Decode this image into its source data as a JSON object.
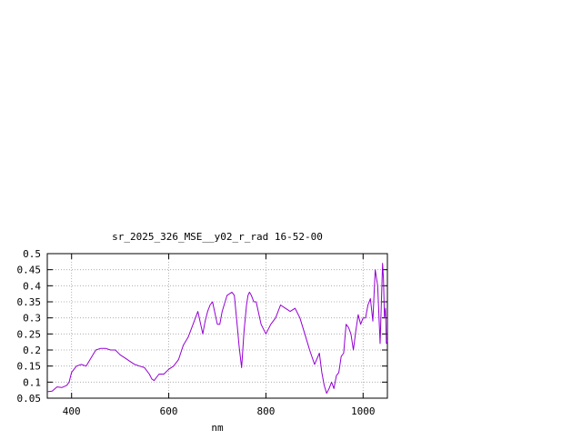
{
  "chart_data": {
    "type": "line",
    "title": "sr_2025_326_MSE__y02_r_rad 16-52-00",
    "xlabel": "nm",
    "ylabel": "",
    "xlim": [
      350,
      1050
    ],
    "ylim": [
      0.05,
      0.5
    ],
    "xticks": [
      400,
      600,
      800,
      1000
    ],
    "yticks": [
      0.05,
      0.1,
      0.15,
      0.2,
      0.25,
      0.3,
      0.35,
      0.4,
      0.45,
      0.5
    ],
    "grid": true,
    "legend": "none",
    "series": [
      {
        "color": "#9400d3",
        "x": [
          350,
          360,
          370,
          380,
          390,
          395,
          400,
          405,
          410,
          420,
          430,
          440,
          450,
          460,
          470,
          480,
          490,
          500,
          510,
          520,
          530,
          540,
          550,
          560,
          565,
          570,
          575,
          580,
          590,
          600,
          610,
          620,
          630,
          640,
          650,
          660,
          670,
          675,
          680,
          685,
          690,
          700,
          705,
          710,
          720,
          730,
          735,
          740,
          745,
          750,
          755,
          760,
          763,
          766,
          770,
          775,
          780,
          790,
          800,
          810,
          820,
          830,
          840,
          845,
          850,
          860,
          870,
          880,
          890,
          900,
          910,
          915,
          920,
          925,
          930,
          935,
          940,
          945,
          950,
          955,
          960,
          965,
          970,
          975,
          980,
          985,
          990,
          995,
          1000,
          1005,
          1010,
          1015,
          1020,
          1025,
          1030,
          1035,
          1040,
          1042,
          1044,
          1046,
          1048,
          1050
        ],
        "y": [
          0.07,
          0.072,
          0.085,
          0.083,
          0.09,
          0.1,
          0.13,
          0.14,
          0.15,
          0.155,
          0.15,
          0.175,
          0.2,
          0.205,
          0.205,
          0.2,
          0.2,
          0.185,
          0.175,
          0.165,
          0.155,
          0.15,
          0.145,
          0.125,
          0.11,
          0.105,
          0.115,
          0.125,
          0.125,
          0.14,
          0.15,
          0.17,
          0.215,
          0.24,
          0.28,
          0.32,
          0.25,
          0.29,
          0.32,
          0.34,
          0.35,
          0.28,
          0.28,
          0.32,
          0.37,
          0.38,
          0.37,
          0.29,
          0.21,
          0.145,
          0.26,
          0.34,
          0.37,
          0.38,
          0.37,
          0.35,
          0.35,
          0.28,
          0.25,
          0.28,
          0.3,
          0.34,
          0.33,
          0.325,
          0.32,
          0.33,
          0.3,
          0.25,
          0.2,
          0.155,
          0.19,
          0.13,
          0.09,
          0.065,
          0.08,
          0.1,
          0.08,
          0.12,
          0.13,
          0.18,
          0.19,
          0.28,
          0.27,
          0.25,
          0.2,
          0.26,
          0.31,
          0.28,
          0.3,
          0.3,
          0.34,
          0.36,
          0.29,
          0.45,
          0.4,
          0.22,
          0.47,
          0.42,
          0.3,
          0.33,
          0.22,
          0.23
        ]
      }
    ]
  }
}
